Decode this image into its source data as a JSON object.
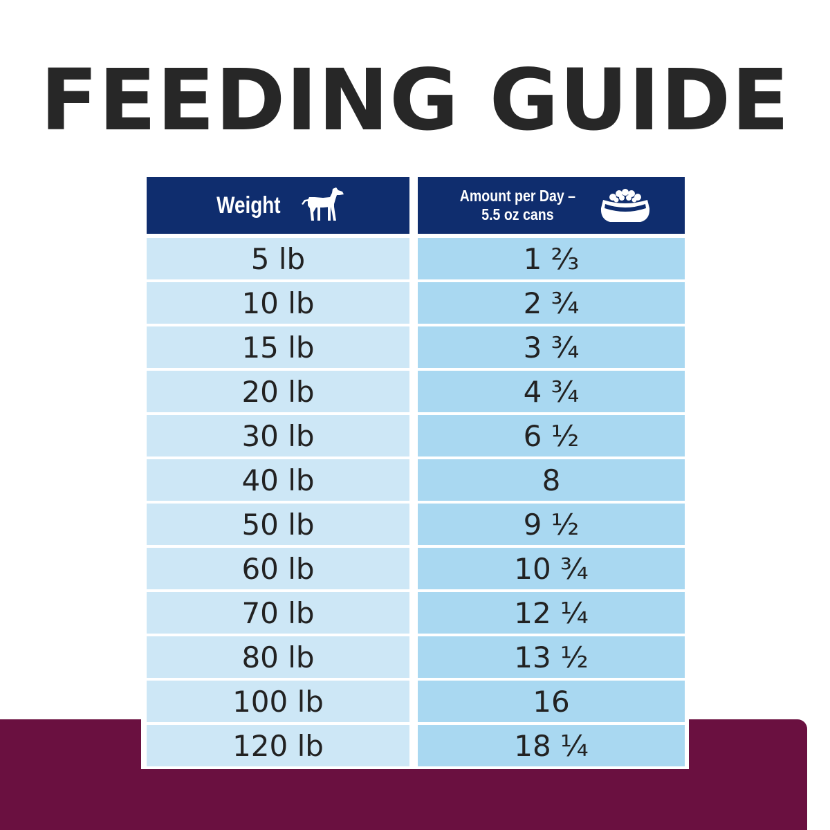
{
  "title": "FEEDING GUIDE",
  "headers": {
    "weight": "Weight",
    "amount_line1": "Amount per Day –",
    "amount_line2": "5.5 oz cans",
    "weight_icon": "dog-icon",
    "amount_icon": "food-bowl-icon"
  },
  "rows": [
    {
      "weight": "5 lb",
      "amount": "1 ⅔"
    },
    {
      "weight": "10 lb",
      "amount": "2 ¾"
    },
    {
      "weight": "15 lb",
      "amount": "3 ¾"
    },
    {
      "weight": "20 lb",
      "amount": "4 ¾"
    },
    {
      "weight": "30 lb",
      "amount": "6 ½"
    },
    {
      "weight": "40 lb",
      "amount": "8"
    },
    {
      "weight": "50 lb",
      "amount": "9 ½"
    },
    {
      "weight": "60 lb",
      "amount": "10 ¾"
    },
    {
      "weight": "70 lb",
      "amount": "12 ¼"
    },
    {
      "weight": "80 lb",
      "amount": "13 ½"
    },
    {
      "weight": "100 lb",
      "amount": "16"
    },
    {
      "weight": "120 lb",
      "amount": "18 ¼"
    }
  ],
  "colors": {
    "header_bg": "#0f2d6e",
    "weight_col_bg": "#cde7f6",
    "amount_col_bg": "#a9d8f1",
    "band": "#6a1040",
    "title_text": "#272727"
  }
}
